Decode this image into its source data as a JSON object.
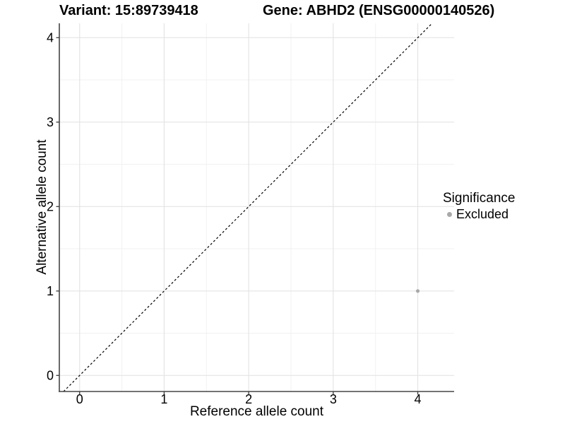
{
  "header": {
    "variant_title": "Variant: 15:89739418",
    "gene_title": "Gene: ABHD2 (ENSG00000140526)"
  },
  "legend": {
    "title": "Significance",
    "items": [
      {
        "label": "Excluded",
        "color": "#a9a9a9"
      }
    ]
  },
  "chart_data": {
    "type": "scatter",
    "title": "Variant: 15:89739418  Gene: ABHD2 (ENSG00000140526)",
    "xlabel": "Reference allele count",
    "ylabel": "Alternative allele count",
    "xlim": [
      -0.24,
      4.43
    ],
    "ylim": [
      -0.19,
      4.17
    ],
    "xticks": [
      "0",
      "1",
      "2",
      "3",
      "4"
    ],
    "xtick_values": [
      0,
      1,
      2,
      3,
      4
    ],
    "yticks": [
      "0",
      "1",
      "2",
      "3",
      "4"
    ],
    "ytick_values": [
      0,
      1,
      2,
      3,
      4
    ],
    "grid": {
      "major": true,
      "minor": true,
      "major_color": "#e4e4e4",
      "minor_color": "#f1f1f1"
    },
    "axis_color": "#454545",
    "series": [
      {
        "name": "Excluded",
        "color": "#a9a9a9",
        "radius": 2.6,
        "points": [
          [
            4,
            1
          ]
        ]
      }
    ],
    "reference_line": {
      "kind": "identity",
      "style": "dashed",
      "dash": [
        3,
        3
      ],
      "color": "#000000",
      "width": 1.2
    },
    "legend_position": "right",
    "legend_title": "Significance"
  }
}
